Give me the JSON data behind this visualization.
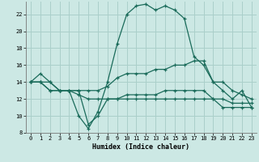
{
  "title": "",
  "xlabel": "Humidex (Indice chaleur)",
  "xlim": [
    -0.5,
    23.5
  ],
  "ylim": [
    8,
    23.5
  ],
  "yticks": [
    8,
    10,
    12,
    14,
    16,
    18,
    20,
    22
  ],
  "xticks": [
    0,
    1,
    2,
    3,
    4,
    5,
    6,
    7,
    8,
    9,
    10,
    11,
    12,
    13,
    14,
    15,
    16,
    17,
    18,
    19,
    20,
    21,
    22,
    23
  ],
  "bg_color": "#cce8e4",
  "grid_color": "#aacfca",
  "line_color": "#1a6b5a",
  "line1_y": [
    14,
    14,
    14,
    13,
    13,
    13,
    9,
    10,
    12,
    12,
    12,
    12,
    12,
    12,
    12,
    12,
    12,
    12,
    12,
    12,
    11,
    11,
    11,
    11
  ],
  "line2_y": [
    14,
    15,
    14,
    13,
    13,
    10,
    8.5,
    10.5,
    14,
    18.5,
    22,
    23,
    23.2,
    22.5,
    23,
    22.5,
    21.5,
    17,
    16,
    14,
    13,
    12,
    13,
    11
  ],
  "line3_y": [
    14,
    14,
    13,
    13,
    13,
    13,
    13,
    13,
    13.5,
    14.5,
    15,
    15,
    15,
    15.5,
    15.5,
    16,
    16,
    16.5,
    16.5,
    14,
    14,
    13,
    12.5,
    12
  ],
  "line4_y": [
    14,
    14,
    13,
    13,
    13,
    12.5,
    12,
    12,
    12,
    12,
    12.5,
    12.5,
    12.5,
    12.5,
    13,
    13,
    13,
    13,
    13,
    12,
    12,
    11.5,
    11.5,
    11.5
  ]
}
